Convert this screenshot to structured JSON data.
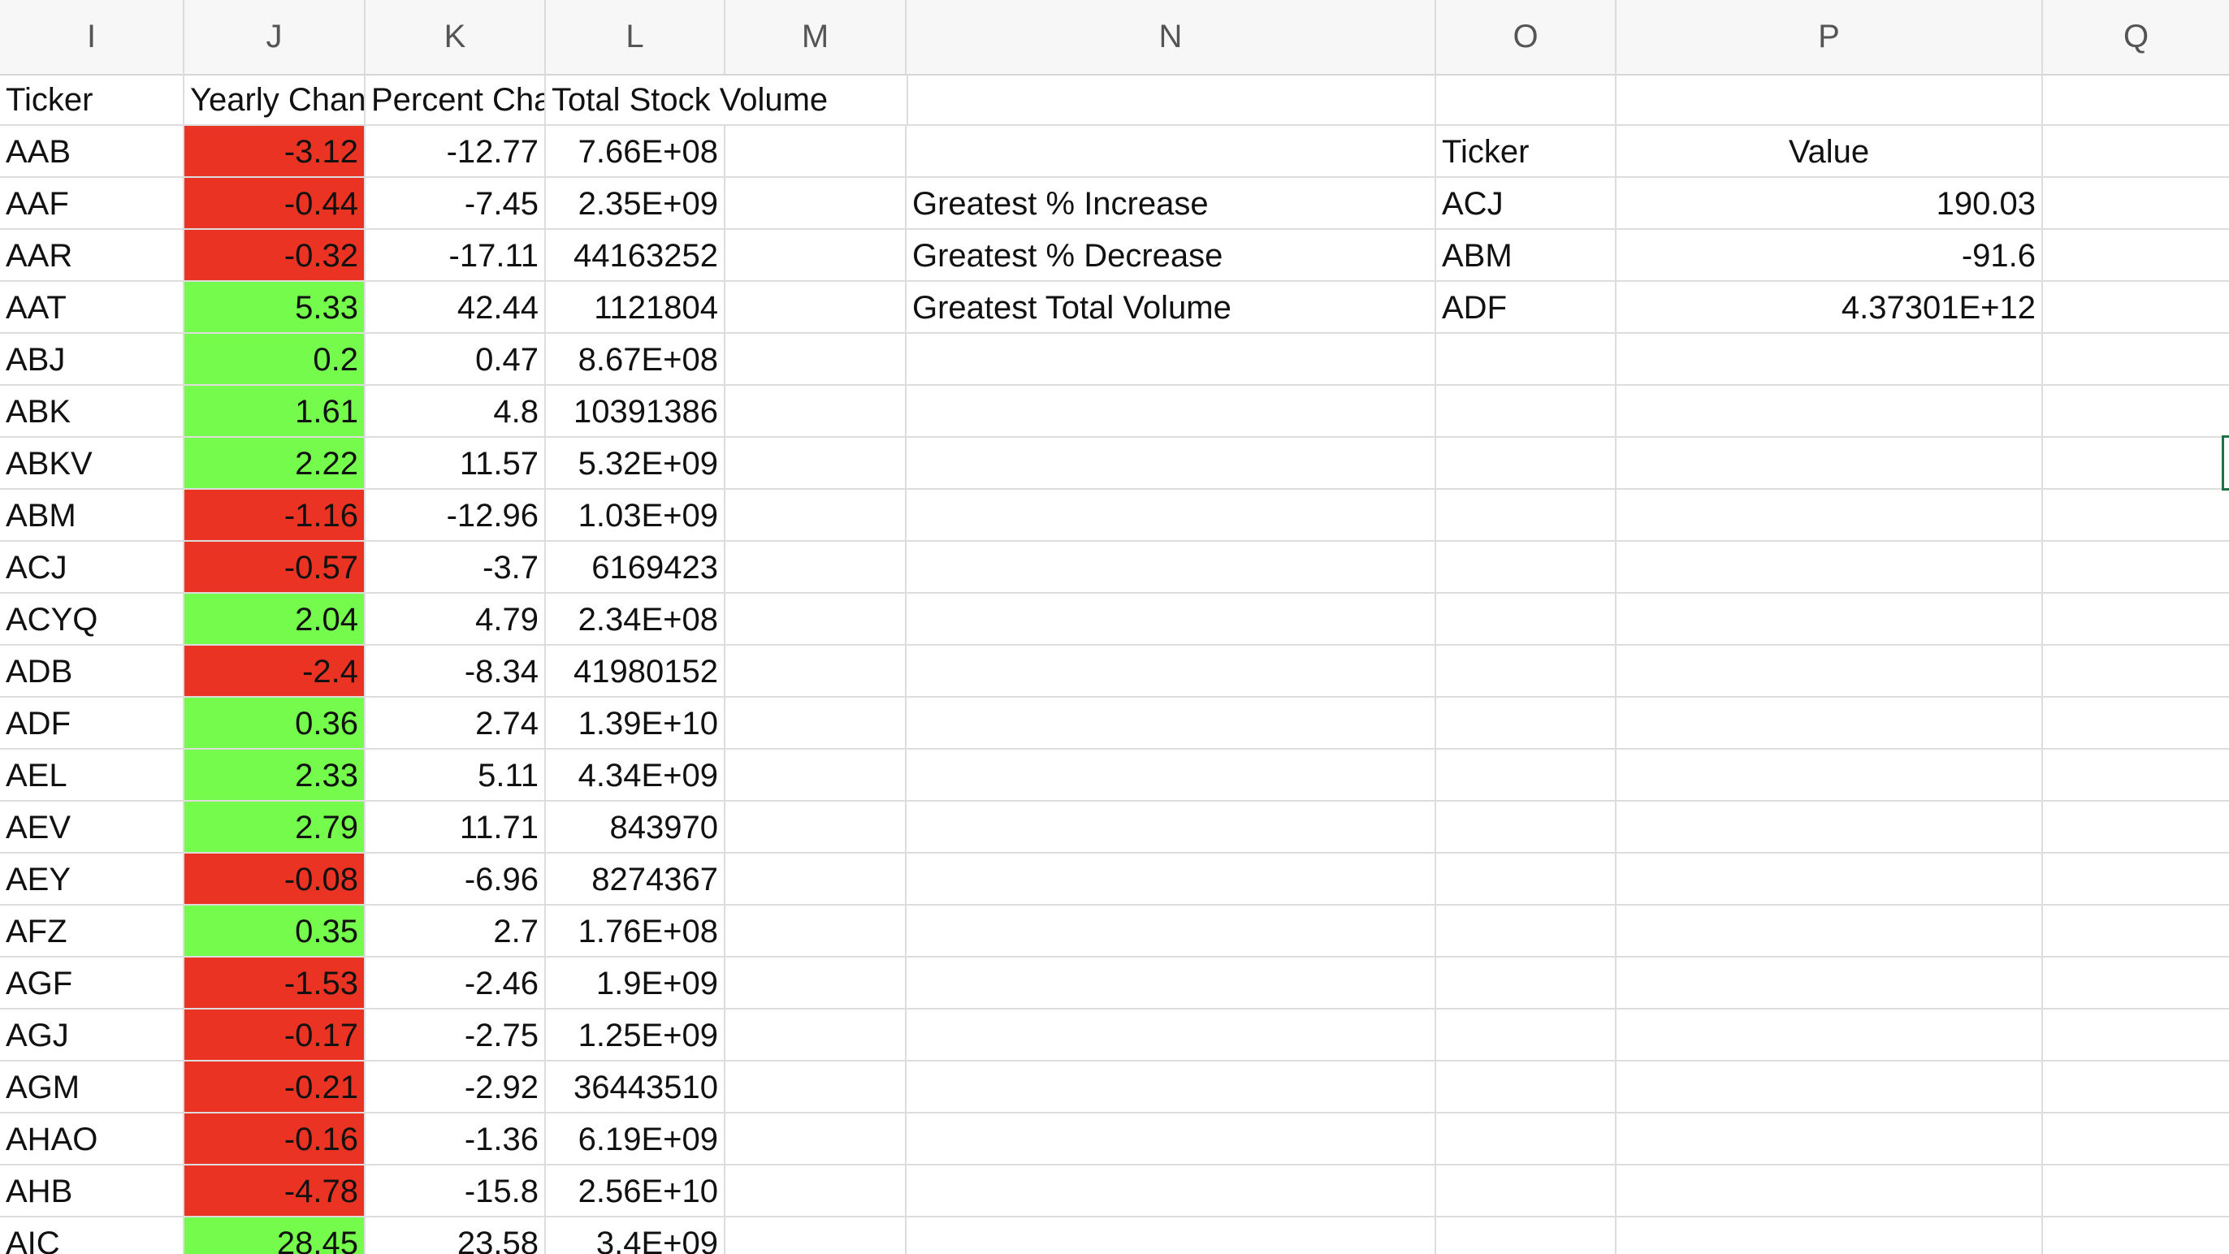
{
  "columns": [
    "I",
    "J",
    "K",
    "L",
    "M",
    "N",
    "O",
    "P",
    "Q"
  ],
  "table": {
    "headers": [
      "Ticker",
      "Yearly Change",
      "Percent Change",
      "Total Stock Volume"
    ],
    "rows": [
      {
        "ticker": "AAB",
        "yearly": "-3.12",
        "pct": "-12.77",
        "vol": "7.66E+08",
        "status": "neg"
      },
      {
        "ticker": "AAF",
        "yearly": "-0.44",
        "pct": "-7.45",
        "vol": "2.35E+09",
        "status": "neg"
      },
      {
        "ticker": "AAR",
        "yearly": "-0.32",
        "pct": "-17.11",
        "vol": "44163252",
        "status": "neg"
      },
      {
        "ticker": "AAT",
        "yearly": "5.33",
        "pct": "42.44",
        "vol": "1121804",
        "status": "pos"
      },
      {
        "ticker": "ABJ",
        "yearly": "0.2",
        "pct": "0.47",
        "vol": "8.67E+08",
        "status": "pos"
      },
      {
        "ticker": "ABK",
        "yearly": "1.61",
        "pct": "4.8",
        "vol": "10391386",
        "status": "pos"
      },
      {
        "ticker": "ABKV",
        "yearly": "2.22",
        "pct": "11.57",
        "vol": "5.32E+09",
        "status": "pos"
      },
      {
        "ticker": "ABM",
        "yearly": "-1.16",
        "pct": "-12.96",
        "vol": "1.03E+09",
        "status": "neg"
      },
      {
        "ticker": "ACJ",
        "yearly": "-0.57",
        "pct": "-3.7",
        "vol": "6169423",
        "status": "neg"
      },
      {
        "ticker": "ACYQ",
        "yearly": "2.04",
        "pct": "4.79",
        "vol": "2.34E+08",
        "status": "pos"
      },
      {
        "ticker": "ADB",
        "yearly": "-2.4",
        "pct": "-8.34",
        "vol": "41980152",
        "status": "neg"
      },
      {
        "ticker": "ADF",
        "yearly": "0.36",
        "pct": "2.74",
        "vol": "1.39E+10",
        "status": "pos"
      },
      {
        "ticker": "AEL",
        "yearly": "2.33",
        "pct": "5.11",
        "vol": "4.34E+09",
        "status": "pos"
      },
      {
        "ticker": "AEV",
        "yearly": "2.79",
        "pct": "11.71",
        "vol": "843970",
        "status": "pos"
      },
      {
        "ticker": "AEY",
        "yearly": "-0.08",
        "pct": "-6.96",
        "vol": "8274367",
        "status": "neg"
      },
      {
        "ticker": "AFZ",
        "yearly": "0.35",
        "pct": "2.7",
        "vol": "1.76E+08",
        "status": "pos"
      },
      {
        "ticker": "AGF",
        "yearly": "-1.53",
        "pct": "-2.46",
        "vol": "1.9E+09",
        "status": "neg"
      },
      {
        "ticker": "AGJ",
        "yearly": "-0.17",
        "pct": "-2.75",
        "vol": "1.25E+09",
        "status": "neg"
      },
      {
        "ticker": "AGM",
        "yearly": "-0.21",
        "pct": "-2.92",
        "vol": "36443510",
        "status": "neg"
      },
      {
        "ticker": "AHAO",
        "yearly": "-0.16",
        "pct": "-1.36",
        "vol": "6.19E+09",
        "status": "neg"
      },
      {
        "ticker": "AHB",
        "yearly": "-4.78",
        "pct": "-15.8",
        "vol": "2.56E+10",
        "status": "neg"
      },
      {
        "ticker": "AIC",
        "yearly": "28.45",
        "pct": "23.58",
        "vol": "3.4E+09",
        "status": "pos"
      }
    ]
  },
  "summary": {
    "headers": {
      "ticker": "Ticker",
      "value": "Value"
    },
    "rows": [
      {
        "label": "Greatest % Increase",
        "ticker": "ACJ",
        "value": "190.03"
      },
      {
        "label": "Greatest % Decrease",
        "ticker": "ABM",
        "value": "-91.6"
      },
      {
        "label": "Greatest Total Volume",
        "ticker": "ADF",
        "value": "4.37301E+12"
      }
    ]
  },
  "colors": {
    "negative": "#ea3323",
    "positive": "#75fb4c",
    "gridline": "#dddddd"
  }
}
